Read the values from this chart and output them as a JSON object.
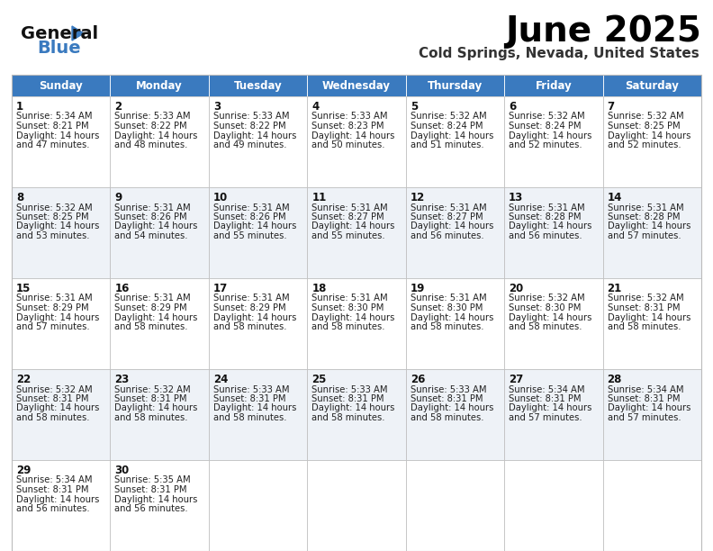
{
  "title": "June 2025",
  "subtitle": "Cold Springs, Nevada, United States",
  "header_color": "#3a7abf",
  "header_text_color": "#ffffff",
  "cell_bg_even": "#eef2f7",
  "cell_bg_odd": "#ffffff",
  "day_names": [
    "Sunday",
    "Monday",
    "Tuesday",
    "Wednesday",
    "Thursday",
    "Friday",
    "Saturday"
  ],
  "weeks": [
    [
      {
        "day": 1,
        "sunrise": "5:34 AM",
        "sunset": "8:21 PM",
        "daylight_h": "14 hours",
        "daylight_m": "and 47 minutes."
      },
      {
        "day": 2,
        "sunrise": "5:33 AM",
        "sunset": "8:22 PM",
        "daylight_h": "14 hours",
        "daylight_m": "and 48 minutes."
      },
      {
        "day": 3,
        "sunrise": "5:33 AM",
        "sunset": "8:22 PM",
        "daylight_h": "14 hours",
        "daylight_m": "and 49 minutes."
      },
      {
        "day": 4,
        "sunrise": "5:33 AM",
        "sunset": "8:23 PM",
        "daylight_h": "14 hours",
        "daylight_m": "and 50 minutes."
      },
      {
        "day": 5,
        "sunrise": "5:32 AM",
        "sunset": "8:24 PM",
        "daylight_h": "14 hours",
        "daylight_m": "and 51 minutes."
      },
      {
        "day": 6,
        "sunrise": "5:32 AM",
        "sunset": "8:24 PM",
        "daylight_h": "14 hours",
        "daylight_m": "and 52 minutes."
      },
      {
        "day": 7,
        "sunrise": "5:32 AM",
        "sunset": "8:25 PM",
        "daylight_h": "14 hours",
        "daylight_m": "and 52 minutes."
      }
    ],
    [
      {
        "day": 8,
        "sunrise": "5:32 AM",
        "sunset": "8:25 PM",
        "daylight_h": "14 hours",
        "daylight_m": "and 53 minutes."
      },
      {
        "day": 9,
        "sunrise": "5:31 AM",
        "sunset": "8:26 PM",
        "daylight_h": "14 hours",
        "daylight_m": "and 54 minutes."
      },
      {
        "day": 10,
        "sunrise": "5:31 AM",
        "sunset": "8:26 PM",
        "daylight_h": "14 hours",
        "daylight_m": "and 55 minutes."
      },
      {
        "day": 11,
        "sunrise": "5:31 AM",
        "sunset": "8:27 PM",
        "daylight_h": "14 hours",
        "daylight_m": "and 55 minutes."
      },
      {
        "day": 12,
        "sunrise": "5:31 AM",
        "sunset": "8:27 PM",
        "daylight_h": "14 hours",
        "daylight_m": "and 56 minutes."
      },
      {
        "day": 13,
        "sunrise": "5:31 AM",
        "sunset": "8:28 PM",
        "daylight_h": "14 hours",
        "daylight_m": "and 56 minutes."
      },
      {
        "day": 14,
        "sunrise": "5:31 AM",
        "sunset": "8:28 PM",
        "daylight_h": "14 hours",
        "daylight_m": "and 57 minutes."
      }
    ],
    [
      {
        "day": 15,
        "sunrise": "5:31 AM",
        "sunset": "8:29 PM",
        "daylight_h": "14 hours",
        "daylight_m": "and 57 minutes."
      },
      {
        "day": 16,
        "sunrise": "5:31 AM",
        "sunset": "8:29 PM",
        "daylight_h": "14 hours",
        "daylight_m": "and 58 minutes."
      },
      {
        "day": 17,
        "sunrise": "5:31 AM",
        "sunset": "8:29 PM",
        "daylight_h": "14 hours",
        "daylight_m": "and 58 minutes."
      },
      {
        "day": 18,
        "sunrise": "5:31 AM",
        "sunset": "8:30 PM",
        "daylight_h": "14 hours",
        "daylight_m": "and 58 minutes."
      },
      {
        "day": 19,
        "sunrise": "5:31 AM",
        "sunset": "8:30 PM",
        "daylight_h": "14 hours",
        "daylight_m": "and 58 minutes."
      },
      {
        "day": 20,
        "sunrise": "5:32 AM",
        "sunset": "8:30 PM",
        "daylight_h": "14 hours",
        "daylight_m": "and 58 minutes."
      },
      {
        "day": 21,
        "sunrise": "5:32 AM",
        "sunset": "8:31 PM",
        "daylight_h": "14 hours",
        "daylight_m": "and 58 minutes."
      }
    ],
    [
      {
        "day": 22,
        "sunrise": "5:32 AM",
        "sunset": "8:31 PM",
        "daylight_h": "14 hours",
        "daylight_m": "and 58 minutes."
      },
      {
        "day": 23,
        "sunrise": "5:32 AM",
        "sunset": "8:31 PM",
        "daylight_h": "14 hours",
        "daylight_m": "and 58 minutes."
      },
      {
        "day": 24,
        "sunrise": "5:33 AM",
        "sunset": "8:31 PM",
        "daylight_h": "14 hours",
        "daylight_m": "and 58 minutes."
      },
      {
        "day": 25,
        "sunrise": "5:33 AM",
        "sunset": "8:31 PM",
        "daylight_h": "14 hours",
        "daylight_m": "and 58 minutes."
      },
      {
        "day": 26,
        "sunrise": "5:33 AM",
        "sunset": "8:31 PM",
        "daylight_h": "14 hours",
        "daylight_m": "and 58 minutes."
      },
      {
        "day": 27,
        "sunrise": "5:34 AM",
        "sunset": "8:31 PM",
        "daylight_h": "14 hours",
        "daylight_m": "and 57 minutes."
      },
      {
        "day": 28,
        "sunrise": "5:34 AM",
        "sunset": "8:31 PM",
        "daylight_h": "14 hours",
        "daylight_m": "and 57 minutes."
      }
    ],
    [
      {
        "day": 29,
        "sunrise": "5:34 AM",
        "sunset": "8:31 PM",
        "daylight_h": "14 hours",
        "daylight_m": "and 56 minutes."
      },
      {
        "day": 30,
        "sunrise": "5:35 AM",
        "sunset": "8:31 PM",
        "daylight_h": "14 hours",
        "daylight_m": "and 56 minutes."
      },
      null,
      null,
      null,
      null,
      null
    ]
  ],
  "background_color": "#ffffff",
  "border_color": "#bbbbbb",
  "logo_general_color": "#111111",
  "logo_blue_color": "#3a7abf",
  "title_fontsize": 28,
  "subtitle_fontsize": 11,
  "dayname_fontsize": 8.5,
  "daynumber_fontsize": 8.5,
  "cell_text_fontsize": 7.2
}
